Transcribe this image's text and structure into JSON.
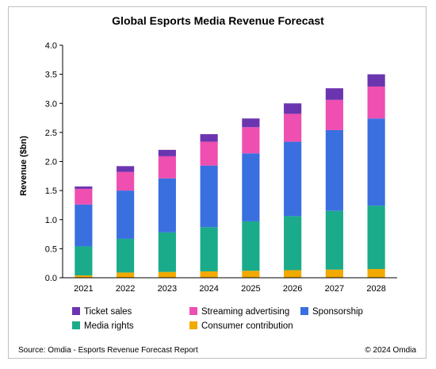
{
  "chart_data": {
    "type": "bar",
    "stacked": true,
    "title": "Global Esports Media Revenue Forecast",
    "xlabel": "",
    "ylabel": "Revenue ($bn)",
    "ylim": [
      0,
      4.0
    ],
    "yticks": [
      "0.0",
      "0.5",
      "1.0",
      "1.5",
      "2.0",
      "2.5",
      "3.0",
      "3.5",
      "4.0"
    ],
    "categories": [
      "2021",
      "2022",
      "2023",
      "2024",
      "2025",
      "2026",
      "2027",
      "2028"
    ],
    "series": [
      {
        "name": "Consumer contribution",
        "color": "#f2a900",
        "values": [
          0.04,
          0.09,
          0.1,
          0.11,
          0.12,
          0.13,
          0.14,
          0.15
        ]
      },
      {
        "name": "Media rights",
        "color": "#1aab8a",
        "values": [
          0.5,
          0.58,
          0.68,
          0.76,
          0.85,
          0.93,
          1.01,
          1.09
        ]
      },
      {
        "name": "Sponsorship",
        "color": "#3a6fe0",
        "values": [
          0.72,
          0.83,
          0.93,
          1.06,
          1.17,
          1.28,
          1.39,
          1.5
        ]
      },
      {
        "name": "Streaming advertising",
        "color": "#ee4fb0",
        "values": [
          0.27,
          0.32,
          0.38,
          0.41,
          0.45,
          0.48,
          0.52,
          0.55
        ]
      },
      {
        "name": "Ticket sales",
        "color": "#6b35b0",
        "values": [
          0.04,
          0.1,
          0.11,
          0.13,
          0.15,
          0.18,
          0.2,
          0.21
        ]
      }
    ],
    "legend": {
      "placement": "bottom",
      "order": [
        "Ticket sales",
        "Streaming advertising",
        "Sponsorship",
        "Media rights",
        "Consumer contribution"
      ]
    },
    "grid": false
  },
  "footer": {
    "source": "Source: Omdia - Esports Revenue Forecast Report",
    "copyright": "© 2024 Omdia"
  }
}
